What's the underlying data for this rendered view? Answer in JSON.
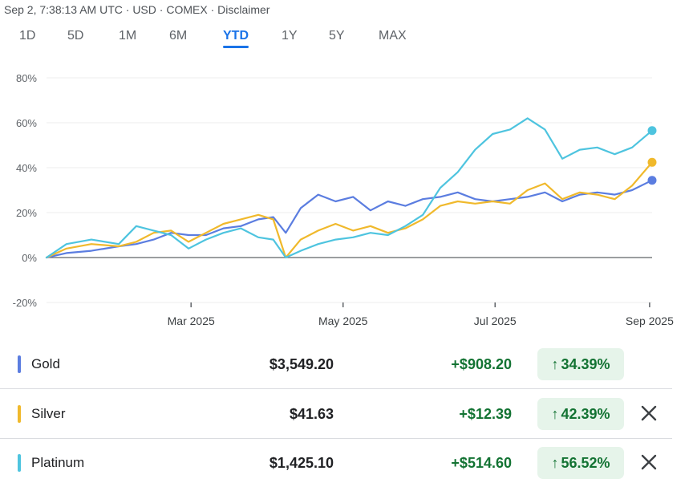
{
  "header": {
    "timestamp": "Sep 2, 7:38:13 AM UTC",
    "currency": "USD",
    "exchange": "COMEX",
    "disclaimer": "Disclaimer"
  },
  "range_tabs": [
    {
      "label": "1D",
      "active": false
    },
    {
      "label": "5D",
      "active": false
    },
    {
      "label": "1M",
      "active": false
    },
    {
      "label": "6M",
      "active": false
    },
    {
      "label": "YTD",
      "active": true
    },
    {
      "label": "1Y",
      "active": false
    },
    {
      "label": "5Y",
      "active": false
    },
    {
      "label": "MAX",
      "active": false
    }
  ],
  "chart_data": {
    "type": "line",
    "title": "",
    "xlabel": "",
    "ylabel": "",
    "y_unit": "%",
    "ylim": [
      -20,
      80
    ],
    "yticks": [
      -20,
      0,
      20,
      40,
      60,
      80
    ],
    "ytick_labels": [
      "-20%",
      "0%",
      "20%",
      "40%",
      "60%",
      "80%"
    ],
    "xlim": [
      "2025-01-02",
      "2025-09-02"
    ],
    "xticks": [
      {
        "date": "2025-03-01",
        "label": "Mar 2025"
      },
      {
        "date": "2025-05-01",
        "label": "May 2025"
      },
      {
        "date": "2025-07-01",
        "label": "Jul 2025"
      },
      {
        "date": "2025-09-01",
        "label": "Sep 2025"
      }
    ],
    "grid": true,
    "series": [
      {
        "name": "Gold",
        "color": "#5b7de0",
        "points": [
          [
            "2025-01-02",
            0
          ],
          [
            "2025-01-10",
            2
          ],
          [
            "2025-01-20",
            3
          ],
          [
            "2025-01-31",
            5
          ],
          [
            "2025-02-07",
            6
          ],
          [
            "2025-02-14",
            8
          ],
          [
            "2025-02-21",
            11
          ],
          [
            "2025-02-28",
            10
          ],
          [
            "2025-03-07",
            10
          ],
          [
            "2025-03-14",
            13
          ],
          [
            "2025-03-21",
            14
          ],
          [
            "2025-03-28",
            17
          ],
          [
            "2025-04-03",
            18
          ],
          [
            "2025-04-08",
            11
          ],
          [
            "2025-04-14",
            22
          ],
          [
            "2025-04-21",
            28
          ],
          [
            "2025-04-28",
            25
          ],
          [
            "2025-05-05",
            27
          ],
          [
            "2025-05-12",
            21
          ],
          [
            "2025-05-19",
            25
          ],
          [
            "2025-05-26",
            23
          ],
          [
            "2025-06-02",
            26
          ],
          [
            "2025-06-09",
            27
          ],
          [
            "2025-06-16",
            29
          ],
          [
            "2025-06-23",
            26
          ],
          [
            "2025-06-30",
            25
          ],
          [
            "2025-07-07",
            26
          ],
          [
            "2025-07-14",
            27
          ],
          [
            "2025-07-21",
            29
          ],
          [
            "2025-07-28",
            25
          ],
          [
            "2025-08-04",
            28
          ],
          [
            "2025-08-11",
            29
          ],
          [
            "2025-08-18",
            28
          ],
          [
            "2025-08-25",
            30
          ],
          [
            "2025-09-02",
            34.39
          ]
        ]
      },
      {
        "name": "Silver",
        "color": "#f0b92c",
        "points": [
          [
            "2025-01-02",
            0
          ],
          [
            "2025-01-10",
            4
          ],
          [
            "2025-01-20",
            6
          ],
          [
            "2025-01-31",
            5
          ],
          [
            "2025-02-07",
            7
          ],
          [
            "2025-02-14",
            11
          ],
          [
            "2025-02-21",
            12
          ],
          [
            "2025-02-28",
            7
          ],
          [
            "2025-03-07",
            11
          ],
          [
            "2025-03-14",
            15
          ],
          [
            "2025-03-21",
            17
          ],
          [
            "2025-03-28",
            19
          ],
          [
            "2025-04-03",
            17
          ],
          [
            "2025-04-08",
            0
          ],
          [
            "2025-04-14",
            8
          ],
          [
            "2025-04-21",
            12
          ],
          [
            "2025-04-28",
            15
          ],
          [
            "2025-05-05",
            12
          ],
          [
            "2025-05-12",
            14
          ],
          [
            "2025-05-19",
            11
          ],
          [
            "2025-05-26",
            13
          ],
          [
            "2025-06-02",
            17
          ],
          [
            "2025-06-09",
            23
          ],
          [
            "2025-06-16",
            25
          ],
          [
            "2025-06-23",
            24
          ],
          [
            "2025-06-30",
            25
          ],
          [
            "2025-07-07",
            24
          ],
          [
            "2025-07-14",
            30
          ],
          [
            "2025-07-21",
            33
          ],
          [
            "2025-07-28",
            26
          ],
          [
            "2025-08-04",
            29
          ],
          [
            "2025-08-11",
            28
          ],
          [
            "2025-08-18",
            26
          ],
          [
            "2025-08-25",
            32
          ],
          [
            "2025-09-02",
            42.39
          ]
        ]
      },
      {
        "name": "Platinum",
        "color": "#4ec4df",
        "points": [
          [
            "2025-01-02",
            0
          ],
          [
            "2025-01-10",
            6
          ],
          [
            "2025-01-20",
            8
          ],
          [
            "2025-01-31",
            6
          ],
          [
            "2025-02-07",
            14
          ],
          [
            "2025-02-14",
            12
          ],
          [
            "2025-02-21",
            10
          ],
          [
            "2025-02-28",
            4
          ],
          [
            "2025-03-07",
            8
          ],
          [
            "2025-03-14",
            11
          ],
          [
            "2025-03-21",
            13
          ],
          [
            "2025-03-28",
            9
          ],
          [
            "2025-04-03",
            8
          ],
          [
            "2025-04-08",
            0
          ],
          [
            "2025-04-14",
            3
          ],
          [
            "2025-04-21",
            6
          ],
          [
            "2025-04-28",
            8
          ],
          [
            "2025-05-05",
            9
          ],
          [
            "2025-05-12",
            11
          ],
          [
            "2025-05-19",
            10
          ],
          [
            "2025-05-26",
            14
          ],
          [
            "2025-06-02",
            19
          ],
          [
            "2025-06-09",
            31
          ],
          [
            "2025-06-16",
            38
          ],
          [
            "2025-06-23",
            48
          ],
          [
            "2025-06-30",
            55
          ],
          [
            "2025-07-07",
            57
          ],
          [
            "2025-07-14",
            62
          ],
          [
            "2025-07-21",
            57
          ],
          [
            "2025-07-28",
            44
          ],
          [
            "2025-08-04",
            48
          ],
          [
            "2025-08-11",
            49
          ],
          [
            "2025-08-18",
            46
          ],
          [
            "2025-08-25",
            49
          ],
          [
            "2025-09-02",
            56.52
          ]
        ]
      }
    ]
  },
  "legend": [
    {
      "name": "Gold",
      "color": "#5b7de0",
      "price": "$3,549.20",
      "change": "+$908.20",
      "pct": "34.39%",
      "removable": false
    },
    {
      "name": "Silver",
      "color": "#f0b92c",
      "price": "$41.63",
      "change": "+$12.39",
      "pct": "42.39%",
      "removable": true
    },
    {
      "name": "Platinum",
      "color": "#4ec4df",
      "price": "$1,425.10",
      "change": "+$514.60",
      "pct": "56.52%",
      "removable": true
    }
  ],
  "icons": {
    "up_arrow": "arrow-up-icon",
    "close": "close-icon"
  }
}
